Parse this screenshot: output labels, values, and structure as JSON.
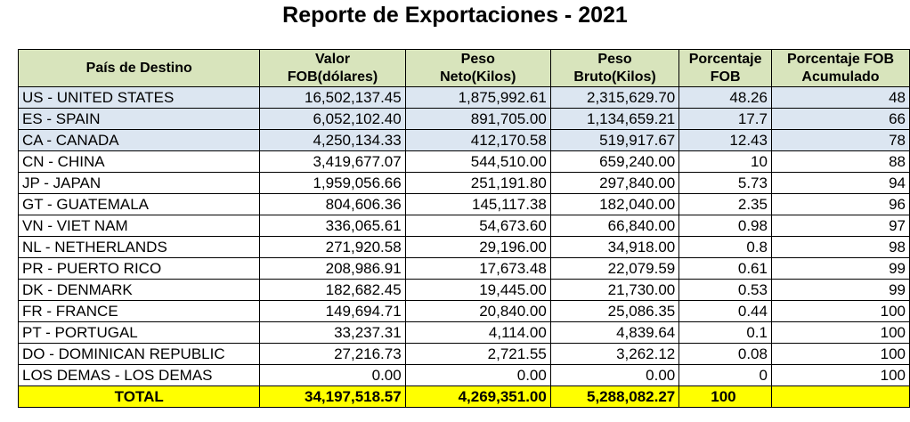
{
  "title": "Reporte de Exportaciones - 2021",
  "headers": {
    "country_label": "País de Destino",
    "fob_line1": "Valor",
    "fob_line2": "FOB(dólares)",
    "neto_line1": "Peso",
    "neto_line2": "Neto(Kilos)",
    "bruto_line1": "Peso",
    "bruto_line2": "Bruto(Kilos)",
    "pct_line1": "Porcentaje",
    "pct_line2": "FOB",
    "cum_line1": "Porcentaje FOB",
    "cum_line2": "Acumulado"
  },
  "rows": [
    {
      "country": "US - UNITED STATES",
      "fob": "16,502,137.45",
      "neto": "1,875,992.61",
      "bruto": "2,315,629.70",
      "pct": "48.26",
      "cum": "48"
    },
    {
      "country": "ES - SPAIN",
      "fob": "6,052,102.40",
      "neto": "891,705.00",
      "bruto": "1,134,659.21",
      "pct": "17.7",
      "cum": "66"
    },
    {
      "country": "CA - CANADA",
      "fob": "4,250,134.33",
      "neto": "412,170.58",
      "bruto": "519,917.67",
      "pct": "12.43",
      "cum": "78"
    },
    {
      "country": "CN - CHINA",
      "fob": "3,419,677.07",
      "neto": "544,510.00",
      "bruto": "659,240.00",
      "pct": "10",
      "cum": "88"
    },
    {
      "country": "JP - JAPAN",
      "fob": "1,959,056.66",
      "neto": "251,191.80",
      "bruto": "297,840.00",
      "pct": "5.73",
      "cum": "94"
    },
    {
      "country": "GT - GUATEMALA",
      "fob": "804,606.36",
      "neto": "145,117.38",
      "bruto": "182,040.00",
      "pct": "2.35",
      "cum": "96"
    },
    {
      "country": "VN - VIET NAM",
      "fob": "336,065.61",
      "neto": "54,673.60",
      "bruto": "66,840.00",
      "pct": "0.98",
      "cum": "97"
    },
    {
      "country": "NL - NETHERLANDS",
      "fob": "271,920.58",
      "neto": "29,196.00",
      "bruto": "34,918.00",
      "pct": "0.8",
      "cum": "98"
    },
    {
      "country": "PR - PUERTO RICO",
      "fob": "208,986.91",
      "neto": "17,673.48",
      "bruto": "22,079.59",
      "pct": "0.61",
      "cum": "99"
    },
    {
      "country": "DK - DENMARK",
      "fob": "182,682.45",
      "neto": "19,445.00",
      "bruto": "21,730.00",
      "pct": "0.53",
      "cum": "99"
    },
    {
      "country": "FR - FRANCE",
      "fob": "149,694.71",
      "neto": "20,840.00",
      "bruto": "25,086.35",
      "pct": "0.44",
      "cum": "100"
    },
    {
      "country": "PT - PORTUGAL",
      "fob": "33,237.31",
      "neto": "4,114.00",
      "bruto": "4,839.64",
      "pct": "0.1",
      "cum": "100"
    },
    {
      "country": "DO - DOMINICAN REPUBLIC",
      "fob": "27,216.73",
      "neto": "2,721.55",
      "bruto": "3,262.12",
      "pct": "0.08",
      "cum": "100"
    },
    {
      "country": "LOS DEMAS - LOS DEMAS",
      "fob": "0.00",
      "neto": "0.00",
      "bruto": "0.00",
      "pct": "0",
      "cum": "100"
    }
  ],
  "total": {
    "label": "TOTAL",
    "fob": "34,197,518.57",
    "neto": "4,269,351.00",
    "bruto": "5,288,082.27",
    "pct": "100",
    "cum": ""
  },
  "colors": {
    "header_bg": "#d8e4bc",
    "highlight_bg": "#dce6f1",
    "total_bg": "#ffff00"
  }
}
